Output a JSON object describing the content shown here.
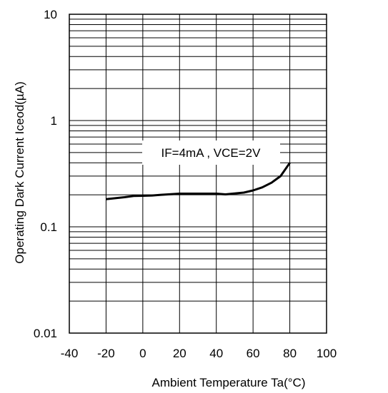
{
  "chart_data": {
    "type": "line",
    "title": "",
    "xlabel": "Ambient Temperature Ta(°C)",
    "ylabel": "Operating Dark Current Iceod(µA)",
    "xlim": [
      -40,
      100
    ],
    "ylim": [
      0.01,
      10
    ],
    "yscale": "log",
    "grid": true,
    "x_ticks": [
      "-40",
      "-20",
      "0",
      "20",
      "40",
      "60",
      "80",
      "100"
    ],
    "y_ticks": [
      "0.01",
      "0.1",
      "1",
      "10"
    ],
    "annotation": "IF=4mA , VCE=2V",
    "series": [
      {
        "x": [
          -20,
          -10,
          -5,
          0,
          5,
          10,
          20,
          30,
          40,
          45,
          50,
          55,
          60,
          65,
          70,
          75,
          80
        ],
        "y": [
          0.182,
          0.19,
          0.195,
          0.196,
          0.197,
          0.2,
          0.205,
          0.205,
          0.205,
          0.202,
          0.206,
          0.21,
          0.22,
          0.235,
          0.26,
          0.3,
          0.4
        ]
      }
    ]
  }
}
